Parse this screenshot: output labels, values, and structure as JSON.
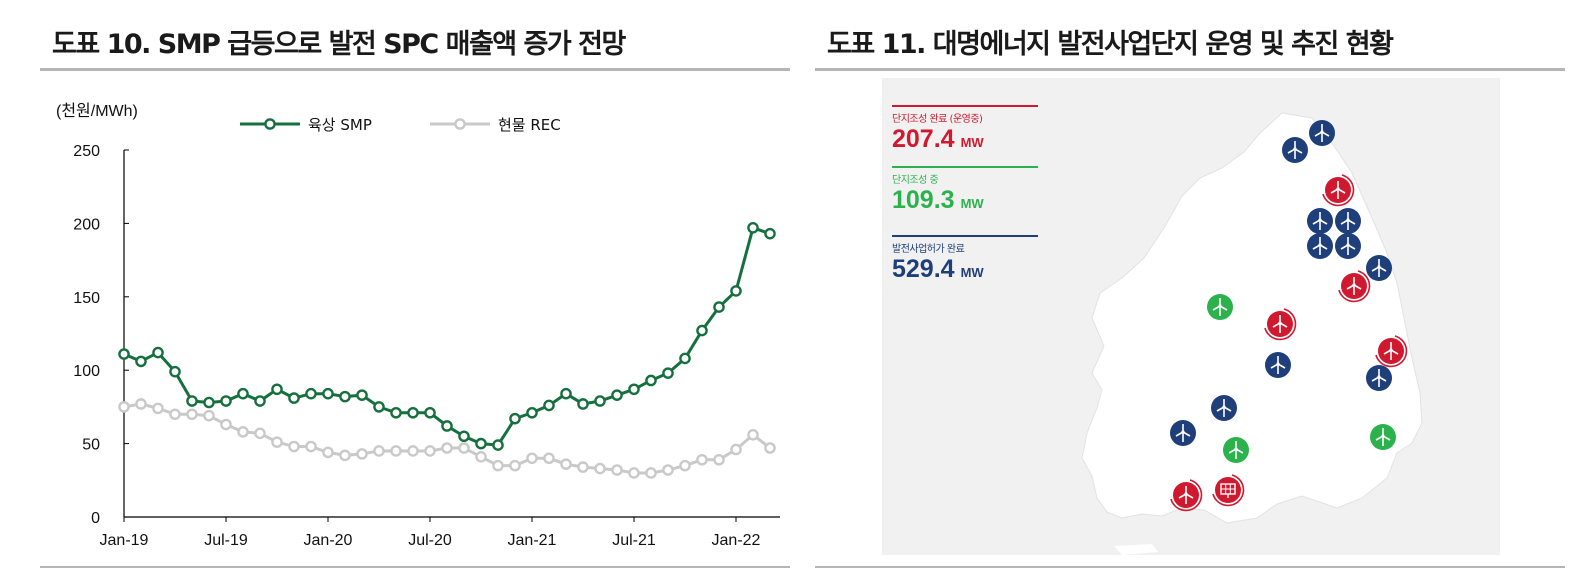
{
  "left": {
    "title": "도표 10. SMP 급등으로 발전 SPC 매출액 증가 전망"
  },
  "right": {
    "title": "도표 11. 대명에너지 발전사업단지 운영 및 추진 현황",
    "stats": [
      {
        "label": "단지조성 완료 (운영중)",
        "value": "207.4",
        "unit": "MW",
        "color": "#d0182e"
      },
      {
        "label": "단지조성 중",
        "value": "109.3",
        "unit": "MW",
        "color": "#2bb24c"
      },
      {
        "label": "발전사업허가 완료",
        "value": "529.4",
        "unit": "MW",
        "color": "#1f3f7a"
      }
    ],
    "colors": {
      "blue": "#1f3f7a",
      "green": "#2bb24c",
      "red": "#d0182e",
      "land": "#ffffff",
      "background": "#f1f1f1"
    },
    "markers": [
      {
        "status": "blue",
        "icon": "wind-turbine"
      },
      {
        "status": "blue",
        "icon": "wind-turbine"
      },
      {
        "status": "red",
        "icon": "wind-turbine"
      },
      {
        "status": "blue",
        "icon": "wind-turbine"
      },
      {
        "status": "blue",
        "icon": "wind-turbine"
      },
      {
        "status": "blue",
        "icon": "wind-turbine"
      },
      {
        "status": "blue",
        "icon": "wind-turbine"
      },
      {
        "status": "blue",
        "icon": "wind-turbine"
      },
      {
        "status": "red",
        "icon": "wind-turbine"
      },
      {
        "status": "green",
        "icon": "wind-turbine"
      },
      {
        "status": "red",
        "icon": "wind-turbine"
      },
      {
        "status": "red",
        "icon": "wind-turbine"
      },
      {
        "status": "blue",
        "icon": "wind-turbine"
      },
      {
        "status": "blue",
        "icon": "wind-turbine"
      },
      {
        "status": "blue",
        "icon": "wind-turbine"
      },
      {
        "status": "blue",
        "icon": "wind-turbine"
      },
      {
        "status": "green",
        "icon": "wind-turbine"
      },
      {
        "status": "green",
        "icon": "wind-turbine"
      },
      {
        "status": "red",
        "icon": "wind-turbine"
      },
      {
        "status": "red",
        "icon": "solar-panel"
      }
    ]
  },
  "chart_data": {
    "type": "line",
    "ylabel": "(천원/MWh)",
    "ylim": [
      0,
      250
    ],
    "yticks": [
      0,
      50,
      100,
      150,
      200,
      250
    ],
    "xticks": [
      "Jan-19",
      "Jul-19",
      "Jan-20",
      "Jul-20",
      "Jan-21",
      "Jul-21",
      "Jan-22"
    ],
    "x": [
      "2019-01",
      "2019-02",
      "2019-03",
      "2019-04",
      "2019-05",
      "2019-06",
      "2019-07",
      "2019-08",
      "2019-09",
      "2019-10",
      "2019-11",
      "2019-12",
      "2020-01",
      "2020-02",
      "2020-03",
      "2020-04",
      "2020-05",
      "2020-06",
      "2020-07",
      "2020-08",
      "2020-09",
      "2020-10",
      "2020-11",
      "2020-12",
      "2021-01",
      "2021-02",
      "2021-03",
      "2021-04",
      "2021-05",
      "2021-06",
      "2021-07",
      "2021-08",
      "2021-09",
      "2021-10",
      "2021-11",
      "2021-12",
      "2022-01",
      "2022-02",
      "2022-03"
    ],
    "legend_position": "top",
    "grid": false,
    "series": [
      {
        "name": "육상 SMP",
        "color": "#16703e",
        "marker": "circle",
        "values": [
          111,
          106,
          112,
          99,
          79,
          78,
          79,
          84,
          79,
          87,
          81,
          84,
          84,
          82,
          83,
          75,
          71,
          71,
          71,
          62,
          55,
          50,
          49,
          67,
          71,
          76,
          84,
          77,
          79,
          83,
          87,
          93,
          98,
          108,
          127,
          143,
          154,
          197,
          193
        ]
      },
      {
        "name": "현물 REC",
        "color": "#c9c9c9",
        "marker": "circle",
        "values": [
          75,
          77,
          74,
          70,
          70,
          69,
          63,
          58,
          57,
          51,
          48,
          48,
          44,
          42,
          43,
          45,
          45,
          45,
          45,
          47,
          47,
          41,
          35,
          35,
          40,
          40,
          36,
          34,
          33,
          32,
          30,
          30,
          32,
          35,
          39,
          39,
          46,
          56,
          47
        ]
      }
    ]
  }
}
